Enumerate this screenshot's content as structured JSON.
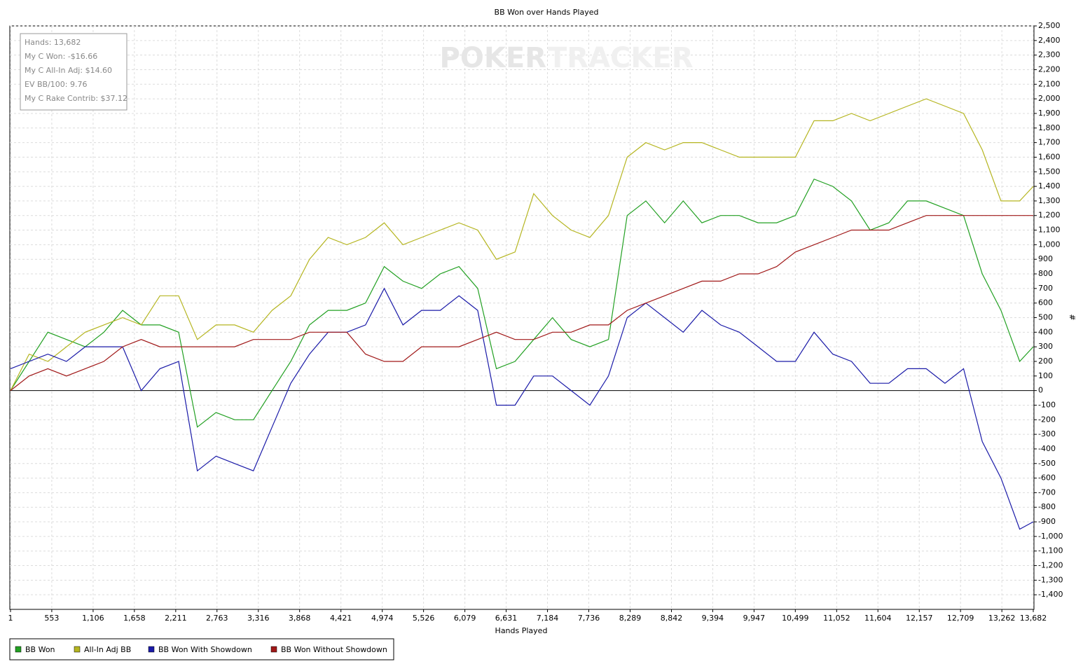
{
  "chart_data": {
    "type": "line",
    "title": "BB Won over Hands Played",
    "x_label": "Hands Played",
    "y_label": "#",
    "watermark": [
      "POKER",
      "TRACKER"
    ],
    "info_box": [
      "Hands: 13,682",
      "My C Won: -$16.66",
      "My C All-In Adj: $14.60",
      "EV BB/100: 9.76",
      "My C Rake Contrib: $37.12"
    ],
    "xlim": [
      1,
      13682
    ],
    "xticks": [
      1,
      553,
      {
        "value": 1106,
        "label": "1,106"
      },
      {
        "value": 1658,
        "label": "1,658"
      },
      {
        "value": 2211,
        "label": "2,211"
      },
      {
        "value": 2763,
        "label": "2,763"
      },
      {
        "value": 3316,
        "label": "3,316"
      },
      {
        "value": 3868,
        "label": "3,868"
      },
      {
        "value": 4421,
        "label": "4,421"
      },
      {
        "value": 4974,
        "label": "4,974"
      },
      {
        "value": 5526,
        "label": "5,526"
      },
      {
        "value": 6079,
        "label": "6,079"
      },
      {
        "value": 6631,
        "label": "6,631"
      },
      {
        "value": 7184,
        "label": "7,184"
      },
      {
        "value": 7736,
        "label": "7,736"
      },
      {
        "value": 8289,
        "label": "8,289"
      },
      {
        "value": 8842,
        "label": "8,842"
      },
      {
        "value": 9394,
        "label": "9,394"
      },
      {
        "value": 9947,
        "label": "9,947"
      },
      {
        "value": 10499,
        "label": "10,499"
      },
      {
        "value": 11052,
        "label": "11,052"
      },
      {
        "value": 11604,
        "label": "11,604"
      },
      {
        "value": 12157,
        "label": "12,157"
      },
      {
        "value": 12709,
        "label": "12,709"
      },
      {
        "value": 13262,
        "label": "13,262"
      },
      {
        "value": 13682,
        "label": "13,682"
      }
    ],
    "ylim": [
      -1500,
      2500
    ],
    "yticks": [
      {
        "value": -1400,
        "label": "-1,400"
      },
      {
        "value": -1300,
        "label": "-1,300"
      },
      {
        "value": -1200,
        "label": "-1,200"
      },
      {
        "value": -1100,
        "label": "-1,100"
      },
      {
        "value": -1000,
        "label": "-1,000"
      },
      -900,
      -800,
      -700,
      -600,
      -500,
      -400,
      -300,
      -200,
      -100,
      0,
      100,
      200,
      300,
      400,
      500,
      600,
      700,
      800,
      900,
      {
        "value": 1000,
        "label": "1,000"
      },
      {
        "value": 1100,
        "label": "1,100"
      },
      {
        "value": 1200,
        "label": "1,200"
      },
      {
        "value": 1300,
        "label": "1,300"
      },
      {
        "value": 1400,
        "label": "1,400"
      },
      {
        "value": 1500,
        "label": "1,500"
      },
      {
        "value": 1600,
        "label": "1,600"
      },
      {
        "value": 1700,
        "label": "1,700"
      },
      {
        "value": 1800,
        "label": "1,800"
      },
      {
        "value": 1900,
        "label": "1,900"
      },
      {
        "value": 2000,
        "label": "2,000"
      },
      {
        "value": 2100,
        "label": "2,100"
      },
      {
        "value": 2200,
        "label": "2,200"
      },
      {
        "value": 2300,
        "label": "2,300"
      },
      {
        "value": 2400,
        "label": "2,400"
      },
      {
        "value": 2500,
        "label": "2,500"
      }
    ],
    "grid": true,
    "x": [
      1,
      250,
      500,
      750,
      1000,
      1250,
      1500,
      1750,
      2000,
      2250,
      2500,
      2750,
      3000,
      3250,
      3500,
      3750,
      4000,
      4250,
      4500,
      4750,
      5000,
      5250,
      5500,
      5750,
      6000,
      6250,
      6500,
      6750,
      7000,
      7250,
      7500,
      7750,
      8000,
      8250,
      8500,
      8750,
      9000,
      9250,
      9500,
      9750,
      10000,
      10250,
      10500,
      10750,
      11000,
      11250,
      11500,
      11750,
      12000,
      12250,
      12500,
      12750,
      13000,
      13250,
      13500,
      13682
    ],
    "series": [
      {
        "name": "BB Won",
        "color": "#22a022",
        "values": [
          0,
          200,
          400,
          350,
          300,
          400,
          550,
          450,
          450,
          400,
          -250,
          -150,
          -200,
          -200,
          0,
          200,
          450,
          550,
          550,
          600,
          850,
          750,
          700,
          800,
          850,
          700,
          150,
          200,
          350,
          500,
          350,
          300,
          350,
          1200,
          1300,
          1150,
          1300,
          1150,
          1200,
          1200,
          1150,
          1150,
          1200,
          1450,
          1400,
          1300,
          1100,
          1150,
          1300,
          1300,
          1250,
          1200,
          800,
          550,
          200,
          300
        ]
      },
      {
        "name": "All-In Adj BB",
        "color": "#b5b520",
        "values": [
          0,
          250,
          200,
          300,
          400,
          450,
          500,
          450,
          650,
          650,
          350,
          450,
          450,
          400,
          550,
          650,
          900,
          1050,
          1000,
          1050,
          1150,
          1000,
          1050,
          1100,
          1150,
          1100,
          900,
          950,
          1350,
          1200,
          1100,
          1050,
          1200,
          1600,
          1700,
          1650,
          1700,
          1700,
          1650,
          1600,
          1600,
          1600,
          1600,
          1850,
          1850,
          1900,
          1850,
          1900,
          1950,
          2000,
          1950,
          1900,
          1650,
          1300,
          1300,
          1400
        ]
      },
      {
        "name": "BB Won With Showdown",
        "color": "#1a1aa8",
        "values": [
          150,
          200,
          250,
          200,
          300,
          300,
          300,
          0,
          150,
          200,
          -550,
          -450,
          -500,
          -550,
          -250,
          50,
          250,
          400,
          400,
          450,
          700,
          450,
          550,
          550,
          650,
          550,
          -100,
          -100,
          100,
          100,
          0,
          -100,
          100,
          500,
          600,
          500,
          400,
          550,
          450,
          400,
          300,
          200,
          200,
          400,
          250,
          200,
          50,
          50,
          150,
          150,
          50,
          150,
          -350,
          -600,
          -950,
          -900
        ]
      },
      {
        "name": "BB Won Without Showdown",
        "color": "#a01818",
        "values": [
          0,
          100,
          150,
          100,
          150,
          200,
          300,
          350,
          300,
          300,
          300,
          300,
          300,
          350,
          350,
          350,
          400,
          400,
          400,
          250,
          200,
          200,
          300,
          300,
          300,
          350,
          400,
          350,
          350,
          400,
          400,
          450,
          450,
          550,
          600,
          650,
          700,
          750,
          750,
          800,
          800,
          850,
          950,
          1000,
          1050,
          1100,
          1100,
          1100,
          1150,
          1200,
          1200,
          1200,
          1200,
          1200,
          1200,
          1200
        ]
      }
    ]
  }
}
